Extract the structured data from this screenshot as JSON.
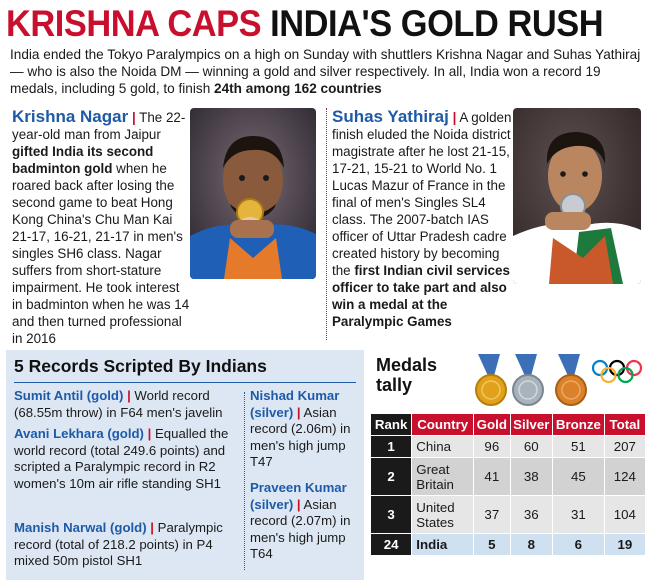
{
  "headline": {
    "part1": "KRISHNA CAPS ",
    "part2": "INDIA'S GOLD RUSH"
  },
  "intro": {
    "text": "India ended the Tokyo Paralympics on a high on Sunday with shuttlers Krishna Nagar and Suhas Yathiraj — who is also the Noida DM — winning a gold and silver respectively. In all, India won a record 19 medals, including 5 gold, to finish ",
    "bold": "24th among 162 countries"
  },
  "krishna": {
    "name": "Krishna Nagar",
    "sep": "|",
    "t1": " The 22-year-old man from Jaipur ",
    "b1": "gifted India its second badminton gold",
    "t2": " when he roared back after losing the second game to beat Hong Kong China's Chu Man Kai 21-17, 16-21, 21-17 in men's singles SH6 class. Nagar suffers from short-stature impairment. He took interest in badminton when he was 14 and then turned professional in 2016"
  },
  "suhas": {
    "name": "Suhas Yathiraj",
    "sep": "|",
    "t1": " A golden finish eluded the Noida district magistrate after he lost 21-15, 17-21, 15-21 to World No. 1 Lucas Mazur of France in the final of men's Singles SL4 class. The 2007-batch IAS officer of Uttar Pradesh cadre created history by becoming the ",
    "b1": "first Indian civil services officer to take part and also win a medal at the Paralympic Games"
  },
  "records": {
    "title": "5 Records Scripted By Indians",
    "items": [
      {
        "who": "Sumit Antil (gold)",
        "sep": "|",
        "text": " World record (68.55m throw) in F64 men's javelin"
      },
      {
        "who": "Avani Lekhara (gold)",
        "sep": "|",
        "text": " Equalled the world record (total 249.6 points) and scripted a Paralympic record in R2 women's 10m air rifle standing SH1"
      },
      {
        "who": "Manish Narwal (gold)",
        "sep": "|",
        "text": " Paralympic record (total of 218.2 points) in P4 mixed 50m pistol SH1"
      },
      {
        "who": "Nishad Kumar (silver)",
        "sep": "|",
        "text": " Asian record (2.06m) in men's high jump T47"
      },
      {
        "who": "Praveen Kumar (silver)",
        "sep": "|",
        "text": " Asian record (2.07m) in men's high jump T64"
      }
    ]
  },
  "tally": {
    "title_line1": "Medals",
    "title_line2": "tally",
    "headers": [
      "Rank",
      "Country",
      "Gold",
      "Silver",
      "Bronze",
      "Total"
    ],
    "rows": [
      [
        "1",
        "China",
        "96",
        "60",
        "51",
        "207"
      ],
      [
        "2",
        "Great Britain",
        "41",
        "38",
        "45",
        "124"
      ],
      [
        "3",
        "United States",
        "37",
        "36",
        "31",
        "104"
      ],
      [
        "24",
        "India",
        "5",
        "8",
        "6",
        "19"
      ]
    ]
  },
  "colors": {
    "accent_red": "#c8102e",
    "accent_blue": "#1e5aa8",
    "panel_blue": "#dde7f3",
    "gold": "#e0a21c",
    "silver": "#a9b3bc",
    "bronze": "#d9822b"
  },
  "icons": [
    "gold-medal-icon",
    "silver-medal-icon",
    "bronze-medal-icon",
    "olympic-rings-icon"
  ]
}
